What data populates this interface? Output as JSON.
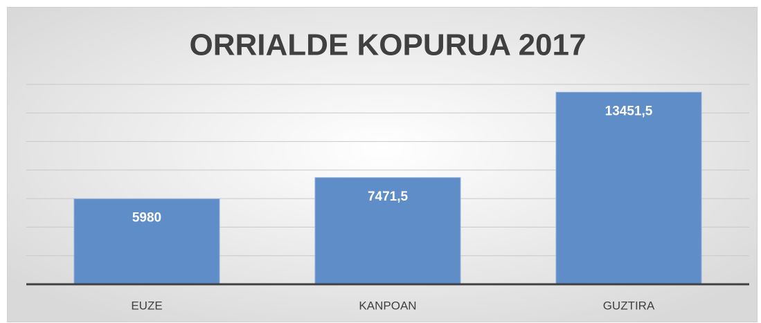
{
  "chart_data": {
    "type": "bar",
    "title": "ORRIALDE KOPURUA 2017",
    "categories": [
      "EUZE",
      "KANPOAN",
      "GUZTIRA"
    ],
    "values": [
      5980,
      7471.5,
      13451.5
    ],
    "value_labels": [
      "5980",
      "7471,5",
      "13451,5"
    ],
    "color": "#5f8dc8",
    "ylim": [
      0,
      14000
    ],
    "yticks": [
      0,
      2000,
      4000,
      6000,
      8000,
      10000,
      12000,
      14000
    ],
    "grid": true
  }
}
